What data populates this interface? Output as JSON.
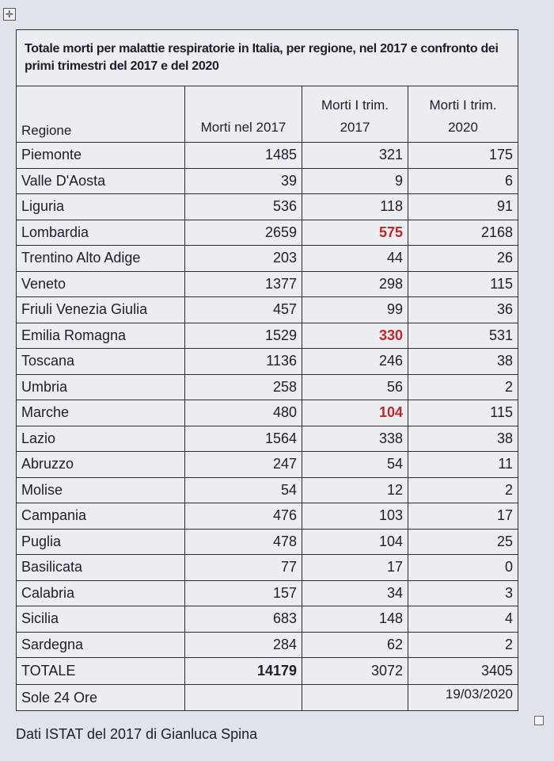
{
  "title": "Totale morti per malattie respiratorie in Italia, per regione, nel 2017 e confronto dei primi trimestri del 2017 e del 2020",
  "headers": [
    "Regione",
    "Morti nel 2017",
    "Morti I trim. 2017",
    "Morti I trim. 2020"
  ],
  "rows": [
    {
      "region": "Piemonte",
      "d2017": "1485",
      "q2017": "321",
      "q2020": "175"
    },
    {
      "region": "Valle D'Aosta",
      "d2017": "39",
      "q2017": "9",
      "q2020": "6"
    },
    {
      "region": "Liguria",
      "d2017": "536",
      "q2017": "118",
      "q2020": "91"
    },
    {
      "region": "Lombardia",
      "d2017": "2659",
      "q2017": "575",
      "q2020": "2168",
      "highlight": true
    },
    {
      "region": "Trentino Alto Adige",
      "d2017": "203",
      "q2017": "44",
      "q2020": "26"
    },
    {
      "region": "Veneto",
      "d2017": "1377",
      "q2017": "298",
      "q2020": "115"
    },
    {
      "region": "Friuli Venezia Giulia",
      "d2017": "457",
      "q2017": "99",
      "q2020": "36"
    },
    {
      "region": "Emilia Romagna",
      "d2017": "1529",
      "q2017": "330",
      "q2020": "531",
      "highlight": true
    },
    {
      "region": "Toscana",
      "d2017": "1136",
      "q2017": "246",
      "q2020": "38"
    },
    {
      "region": "Umbria",
      "d2017": "258",
      "q2017": "56",
      "q2020": "2"
    },
    {
      "region": "Marche",
      "d2017": "480",
      "q2017": "104",
      "q2020": "115",
      "highlight": true
    },
    {
      "region": "Lazio",
      "d2017": "1564",
      "q2017": "338",
      "q2020": "38"
    },
    {
      "region": "Abruzzo",
      "d2017": "247",
      "q2017": "54",
      "q2020": "11"
    },
    {
      "region": "Molise",
      "d2017": "54",
      "q2017": "12",
      "q2020": "2"
    },
    {
      "region": "Campania",
      "d2017": "476",
      "q2017": "103",
      "q2020": "17"
    },
    {
      "region": "Puglia",
      "d2017": "478",
      "q2017": "104",
      "q2020": "25"
    },
    {
      "region": "Basilicata",
      "d2017": "77",
      "q2017": "17",
      "q2020": "0"
    },
    {
      "region": "Calabria",
      "d2017": "157",
      "q2017": "34",
      "q2020": "3"
    },
    {
      "region": "Sicilia",
      "d2017": "683",
      "q2017": "148",
      "q2020": "4"
    },
    {
      "region": "Sardegna",
      "d2017": "284",
      "q2017": "62",
      "q2020": "2"
    }
  ],
  "total": {
    "label": "TOTALE",
    "d2017": "14179",
    "q2017": "3072",
    "q2020": "3405"
  },
  "source": {
    "label": "Sole 24 Ore",
    "date": "19/03/2020"
  },
  "caption": "Dati ISTAT del 2017 di Gianluca Spina",
  "colors": {
    "highlight": "#c0262b"
  },
  "icons": {
    "move_handle": "✛"
  }
}
